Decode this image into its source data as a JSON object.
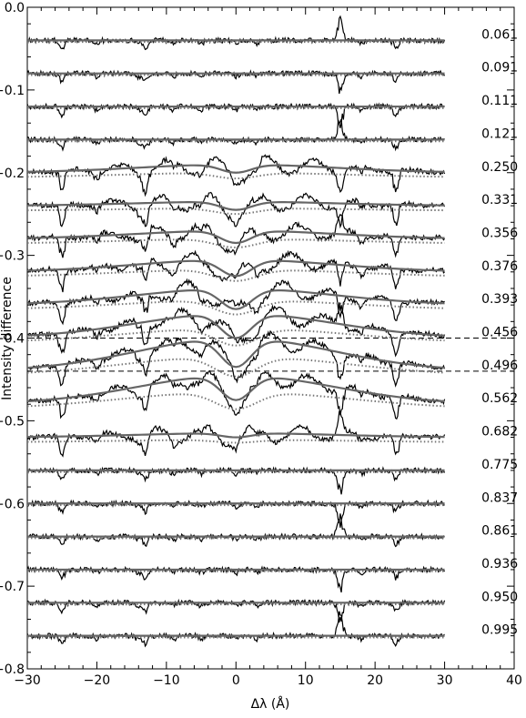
{
  "chart_data": {
    "type": "line",
    "title": "",
    "xlabel": "Δλ (Å)",
    "ylabel": "Intensity difference",
    "xlim": [
      -30,
      40
    ],
    "ylim": [
      -0.8,
      0.0
    ],
    "x_ticks": [
      -30,
      -20,
      -10,
      0,
      10,
      20,
      30,
      40
    ],
    "x_tick_labels": [
      "−30",
      "−20",
      "−10",
      "0",
      "10",
      "20",
      "30",
      "40"
    ],
    "y_ticks": [
      0.0,
      -0.1,
      -0.2,
      -0.3,
      -0.4,
      -0.5,
      -0.6,
      -0.7,
      -0.8
    ],
    "y_tick_labels": [
      "0.0",
      "−0.1",
      "−0.2",
      "−0.3",
      "−0.4",
      "−0.5",
      "−0.6",
      "−0.7",
      "−0.8"
    ],
    "grid": false,
    "legend": "none",
    "line_colors": {
      "observed": "#000000",
      "model_solid": "#666666",
      "model_dotted": "#777777",
      "reference": "#000000"
    },
    "observed_x_range": [
      -30,
      30
    ],
    "absorption_features_x": [
      -25,
      -20,
      -14,
      -13,
      -9,
      -5,
      0,
      3,
      15,
      18,
      23
    ],
    "dashed_reference_offsets": [
      -0.4,
      -0.44
    ],
    "series": [
      {
        "label": "0.061",
        "offset": -0.04,
        "central_depth": 0.0,
        "wing_height": 0.0
      },
      {
        "label": "0.091",
        "offset": -0.08,
        "central_depth": 0.0,
        "wing_height": 0.0
      },
      {
        "label": "0.111",
        "offset": -0.12,
        "central_depth": 0.0,
        "wing_height": 0.0
      },
      {
        "label": "0.121",
        "offset": -0.16,
        "central_depth": 0.0,
        "wing_height": 0.0
      },
      {
        "label": "0.250",
        "offset": -0.2,
        "central_depth": 0.01,
        "wing_height": 0.01
      },
      {
        "label": "0.331",
        "offset": -0.24,
        "central_depth": 0.01,
        "wing_height": 0.005
      },
      {
        "label": "0.356",
        "offset": -0.28,
        "central_depth": 0.015,
        "wing_height": 0.01
      },
      {
        "label": "0.376",
        "offset": -0.32,
        "central_depth": 0.02,
        "wing_height": 0.015
      },
      {
        "label": "0.393",
        "offset": -0.36,
        "central_depth": 0.025,
        "wing_height": 0.02
      },
      {
        "label": "0.456",
        "offset": -0.4,
        "central_depth": 0.03,
        "wing_height": 0.03
      },
      {
        "label": "0.496",
        "offset": -0.44,
        "central_depth": 0.035,
        "wing_height": 0.04
      },
      {
        "label": "0.562",
        "offset": -0.48,
        "central_depth": 0.03,
        "wing_height": 0.035
      },
      {
        "label": "0.682",
        "offset": -0.52,
        "central_depth": 0.005,
        "wing_height": 0.005
      },
      {
        "label": "0.775",
        "offset": -0.56,
        "central_depth": 0.0,
        "wing_height": 0.0
      },
      {
        "label": "0.837",
        "offset": -0.6,
        "central_depth": 0.0,
        "wing_height": 0.0
      },
      {
        "label": "0.861",
        "offset": -0.64,
        "central_depth": 0.0,
        "wing_height": 0.0
      },
      {
        "label": "0.936",
        "offset": -0.68,
        "central_depth": 0.0,
        "wing_height": 0.0
      },
      {
        "label": "0.950",
        "offset": -0.72,
        "central_depth": 0.0,
        "wing_height": 0.0
      },
      {
        "label": "0.995",
        "offset": -0.76,
        "central_depth": 0.0,
        "wing_height": 0.0
      }
    ]
  }
}
